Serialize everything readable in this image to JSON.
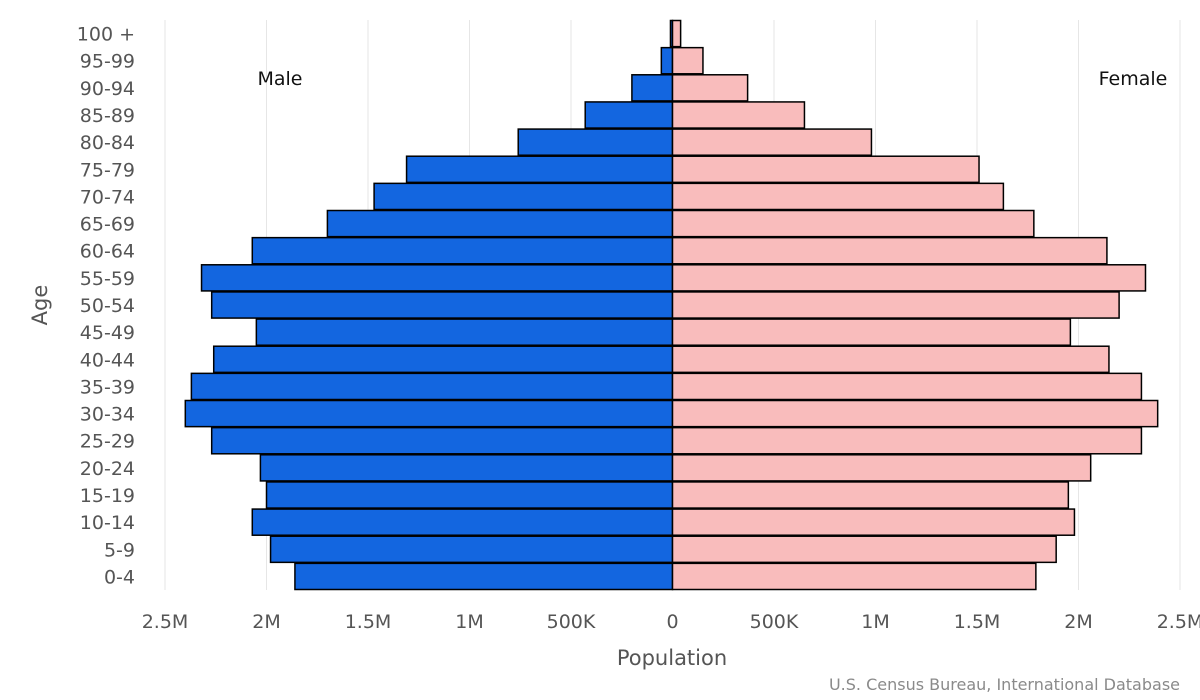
{
  "chart_data": {
    "type": "bar",
    "orientation": "horizontal",
    "xlabel": "Population",
    "ylabel": "Age",
    "categories": [
      "0-4",
      "5-9",
      "10-14",
      "15-19",
      "20-24",
      "25-29",
      "30-34",
      "35-39",
      "40-44",
      "45-49",
      "50-54",
      "55-59",
      "60-64",
      "65-69",
      "70-74",
      "75-79",
      "80-84",
      "85-89",
      "90-94",
      "95-99",
      "100 +"
    ],
    "series": [
      {
        "name": "Male",
        "color": "#1366e0",
        "values": [
          1860000,
          1980000,
          2070000,
          2000000,
          2030000,
          2270000,
          2400000,
          2370000,
          2260000,
          2050000,
          2270000,
          2320000,
          2070000,
          1700000,
          1470000,
          1310000,
          760000,
          430000,
          200000,
          55000,
          10000
        ]
      },
      {
        "name": "Female",
        "color": "#f9bcbc",
        "values": [
          1790000,
          1890000,
          1980000,
          1950000,
          2060000,
          2310000,
          2390000,
          2310000,
          2150000,
          1960000,
          2200000,
          2330000,
          2140000,
          1780000,
          1630000,
          1510000,
          980000,
          650000,
          370000,
          150000,
          40000
        ]
      }
    ],
    "xlim": [
      -2500000,
      2500000
    ],
    "xticks": [
      {
        "value": -2500000,
        "label": "2.5M"
      },
      {
        "value": -2000000,
        "label": "2M"
      },
      {
        "value": -1500000,
        "label": "1.5M"
      },
      {
        "value": -1000000,
        "label": "1M"
      },
      {
        "value": -500000,
        "label": "500K"
      },
      {
        "value": 0,
        "label": "0"
      },
      {
        "value": 500000,
        "label": "500K"
      },
      {
        "value": 1000000,
        "label": "1M"
      },
      {
        "value": 1500000,
        "label": "1.5M"
      },
      {
        "value": 2000000,
        "label": "2M"
      },
      {
        "value": 2500000,
        "label": "2.5M"
      }
    ],
    "grid": true,
    "side_labels": {
      "left": "Male",
      "right": "Female"
    },
    "credit": "U.S. Census Bureau, International Database"
  }
}
